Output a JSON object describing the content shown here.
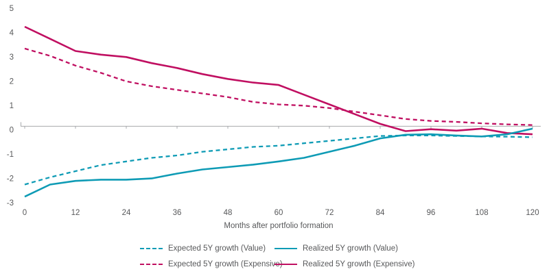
{
  "chart_data": {
    "type": "line",
    "title": "",
    "xlabel": "Months after portfolio formation",
    "ylabel": "",
    "xlim": [
      0,
      120
    ],
    "ylim": [
      -3,
      5
    ],
    "xticks": [
      0,
      12,
      24,
      36,
      48,
      60,
      72,
      84,
      96,
      108,
      120
    ],
    "yticks": [
      5,
      4,
      3,
      2,
      1,
      0,
      -1,
      -2,
      -3
    ],
    "grid": false,
    "legend_position": "bottom",
    "axis_color": "#a7a9ac",
    "text_color": "#57585a",
    "x": [
      0,
      6,
      12,
      18,
      24,
      30,
      36,
      42,
      48,
      54,
      60,
      66,
      72,
      78,
      84,
      90,
      96,
      102,
      108,
      114,
      120
    ],
    "series": [
      {
        "name": "Expected 5Y growth (Value)",
        "style": "dashed",
        "color": "#0e9bb5",
        "values": [
          -2.4,
          -2.1,
          -1.85,
          -1.6,
          -1.45,
          -1.3,
          -1.2,
          -1.05,
          -0.95,
          -0.85,
          -0.8,
          -0.7,
          -0.6,
          -0.5,
          -0.4,
          -0.38,
          -0.38,
          -0.4,
          -0.42,
          -0.43,
          -0.45
        ]
      },
      {
        "name": "Realized 5Y growth (Value)",
        "style": "solid",
        "color": "#0e9bb5",
        "values": [
          -2.9,
          -2.4,
          -2.25,
          -2.2,
          -2.2,
          -2.15,
          -1.95,
          -1.78,
          -1.68,
          -1.58,
          -1.45,
          -1.3,
          -1.05,
          -0.8,
          -0.5,
          -0.35,
          -0.33,
          -0.38,
          -0.42,
          -0.33,
          -0.1
        ]
      },
      {
        "name": "Expected 5Y growth (Expensive)",
        "style": "dashed",
        "color": "#c00f61",
        "values": [
          3.2,
          2.9,
          2.5,
          2.2,
          1.85,
          1.65,
          1.5,
          1.35,
          1.2,
          1.0,
          0.9,
          0.85,
          0.75,
          0.6,
          0.45,
          0.3,
          0.22,
          0.18,
          0.12,
          0.08,
          0.05
        ]
      },
      {
        "name": "Realized 5Y growth (Expensive)",
        "style": "solid",
        "color": "#c00f61",
        "values": [
          4.1,
          3.6,
          3.1,
          2.95,
          2.85,
          2.6,
          2.4,
          2.15,
          1.95,
          1.8,
          1.7,
          1.3,
          0.9,
          0.5,
          0.1,
          -0.2,
          -0.12,
          -0.18,
          -0.1,
          -0.28,
          -0.33
        ]
      }
    ]
  }
}
